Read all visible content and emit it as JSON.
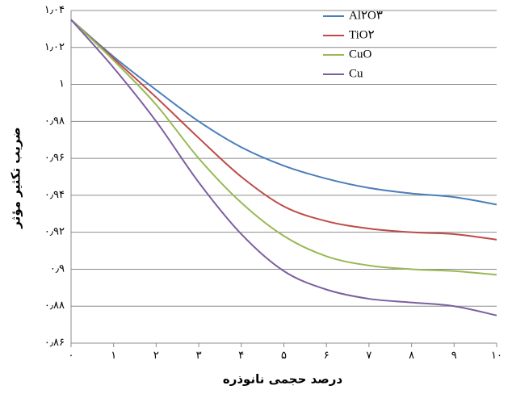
{
  "chart_data": {
    "type": "line",
    "x_label": "درصد حجمی نانوذره",
    "y_label": "ضریب تکثیر مؤثر",
    "x": [
      0,
      1,
      2,
      3,
      4,
      5,
      6,
      7,
      8,
      9,
      10
    ],
    "series": [
      {
        "name": "Al۲O۳",
        "color": "#4a7ebb",
        "values": [
          1.035,
          1.015,
          0.997,
          0.98,
          0.966,
          0.956,
          0.949,
          0.944,
          0.941,
          0.939,
          0.935
        ]
      },
      {
        "name": "TiO۲",
        "color": "#be4b48",
        "values": [
          1.035,
          1.014,
          0.993,
          0.971,
          0.95,
          0.934,
          0.926,
          0.922,
          0.92,
          0.919,
          0.916
        ]
      },
      {
        "name": "CuO",
        "color": "#98b954",
        "values": [
          1.035,
          1.013,
          0.989,
          0.96,
          0.936,
          0.918,
          0.907,
          0.902,
          0.9,
          0.899,
          0.897
        ]
      },
      {
        "name": "Cu",
        "color": "#7d5fa0",
        "values": [
          1.035,
          1.009,
          0.98,
          0.947,
          0.919,
          0.899,
          0.889,
          0.884,
          0.882,
          0.88,
          0.875
        ]
      }
    ],
    "xlim": [
      0,
      10
    ],
    "xticks": [
      {
        "value": 0,
        "label": "۰"
      },
      {
        "value": 1,
        "label": "۱"
      },
      {
        "value": 2,
        "label": "۲"
      },
      {
        "value": 3,
        "label": "۳"
      },
      {
        "value": 4,
        "label": "۴"
      },
      {
        "value": 5,
        "label": "۵"
      },
      {
        "value": 6,
        "label": "۶"
      },
      {
        "value": 7,
        "label": "۷"
      },
      {
        "value": 8,
        "label": "۸"
      },
      {
        "value": 9,
        "label": "۹"
      },
      {
        "value": 10,
        "label": "۱۰"
      }
    ],
    "ylim": [
      0.86,
      1.04
    ],
    "yticks": [
      {
        "value": 0.86,
        "label": "۰٫۸۶"
      },
      {
        "value": 0.88,
        "label": "۰٫۸۸"
      },
      {
        "value": 0.9,
        "label": "۰٫۹"
      },
      {
        "value": 0.92,
        "label": "۰٫۹۲"
      },
      {
        "value": 0.94,
        "label": "۰٫۹۴"
      },
      {
        "value": 0.96,
        "label": "۰٫۹۶"
      },
      {
        "value": 0.98,
        "label": "۰٫۹۸"
      },
      {
        "value": 1,
        "label": "۱"
      },
      {
        "value": 1.02,
        "label": "۱٫۰۲"
      },
      {
        "value": 1.04,
        "label": "۱٫۰۴"
      }
    ],
    "grid": true,
    "legend": "top-right"
  }
}
